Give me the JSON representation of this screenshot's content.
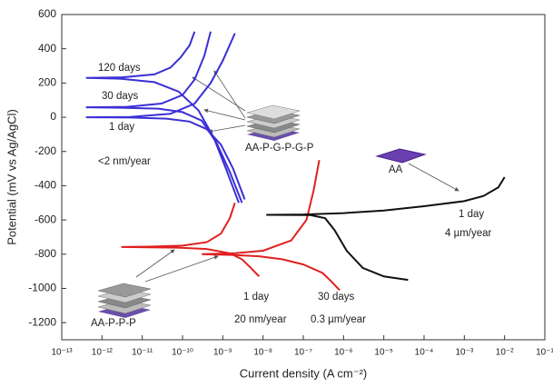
{
  "chart_data": {
    "type": "line",
    "xlabel": "Current density (A cm⁻²)",
    "ylabel": "Potential (mV vs Ag/AgCl)",
    "xscale": "log",
    "xlim": [
      1e-13,
      0.1
    ],
    "xticks": [
      {
        "value": 1e-13,
        "label": "10⁻¹³"
      },
      {
        "value": 1e-12,
        "label": "10⁻¹²"
      },
      {
        "value": 1e-11,
        "label": "10⁻¹¹"
      },
      {
        "value": 1e-10,
        "label": "10⁻¹⁰"
      },
      {
        "value": 1e-09,
        "label": "10⁻⁹"
      },
      {
        "value": 1e-08,
        "label": "10⁻⁸"
      },
      {
        "value": 1e-07,
        "label": "10⁻⁷"
      },
      {
        "value": 1e-06,
        "label": "10⁻⁶"
      },
      {
        "value": 1e-05,
        "label": "10⁻⁵"
      },
      {
        "value": 0.0001,
        "label": "10⁻⁴"
      },
      {
        "value": 0.001,
        "label": "10⁻³"
      },
      {
        "value": 0.01,
        "label": "10⁻²"
      },
      {
        "value": 0.1,
        "label": "10⁻¹"
      }
    ],
    "ylim": [
      -1300,
      600
    ],
    "yticks": [
      -1200,
      -1000,
      -800,
      -600,
      -400,
      -200,
      0,
      200,
      400,
      600
    ],
    "series": [
      {
        "color": "#3b2fd6",
        "x": [
          2.5e-09,
          1.2e-09,
          6e-10,
          2.5e-10,
          8e-11,
          2e-11,
          3e-12,
          4e-13,
          3e-12,
          2e-11,
          5e-11,
          9e-11,
          1.5e-10,
          2e-10
        ],
        "values": [
          -500,
          -300,
          -120,
          40,
          150,
          205,
          225,
          230,
          233,
          250,
          290,
          350,
          420,
          500
        ]
      },
      {
        "color": "#3b2fd6",
        "x": [
          3e-09,
          1.5e-09,
          7e-10,
          3e-10,
          1e-10,
          2.5e-11,
          4e-12,
          4e-13,
          4e-12,
          3e-11,
          1e-10,
          2e-10,
          3.5e-10,
          5e-10
        ],
        "values": [
          -500,
          -320,
          -150,
          -20,
          30,
          50,
          55,
          58,
          60,
          80,
          130,
          220,
          360,
          500
        ]
      },
      {
        "color": "#3b2fd6",
        "x": [
          3.5e-09,
          1.8e-09,
          9e-10,
          4e-10,
          1.5e-10,
          4e-11,
          5e-12,
          4e-13,
          5e-12,
          5e-11,
          2e-10,
          5e-10,
          1e-09,
          2e-09
        ],
        "values": [
          -480,
          -300,
          -160,
          -70,
          -25,
          -8,
          -2,
          0,
          2,
          20,
          80,
          200,
          330,
          490
        ]
      },
      {
        "color": "#e02020",
        "x": [
          8e-09,
          5e-09,
          3e-09,
          1.5e-09,
          4e-10,
          8e-11,
          1.5e-11,
          3e-12,
          1.5e-11,
          1e-10,
          4e-10,
          9e-10,
          1.5e-09,
          2e-09
        ],
        "values": [
          -930,
          -880,
          -830,
          -795,
          -770,
          -762,
          -760,
          -758,
          -756,
          -750,
          -730,
          -680,
          -590,
          -500
        ]
      },
      {
        "color": "#e02020",
        "x": [
          8e-07,
          5e-07,
          3e-07,
          1e-07,
          3e-08,
          8e-09,
          2e-09,
          3e-10,
          2e-09,
          1e-08,
          5e-08,
          1.2e-07,
          1.8e-07,
          2.5e-07
        ],
        "values": [
          -1010,
          -960,
          -910,
          -860,
          -830,
          -812,
          -805,
          -800,
          -795,
          -780,
          -720,
          -600,
          -430,
          -250
        ]
      },
      {
        "color": "#111111",
        "x": [
          4e-05,
          1e-05,
          3e-06,
          1.2e-06,
          6e-07,
          3.5e-07,
          1.5e-07,
          1.2e-08,
          1e-07,
          1e-06,
          1e-05,
          0.0001,
          0.001,
          0.003,
          0.007,
          0.01
        ],
        "values": [
          -950,
          -930,
          -880,
          -780,
          -660,
          -590,
          -572,
          -570,
          -568,
          -560,
          -545,
          -520,
          -490,
          -460,
          -410,
          -350
        ]
      }
    ],
    "annotations": [
      "120 days",
      "30 days",
      "1 day",
      "<2 nm/year",
      "AA-P-G-P-G-P",
      "AA",
      "1 day",
      "4 µm/year",
      "AA-P-P-P",
      "1 day",
      "20 nm/year",
      "30 days",
      "0.3 µm/year"
    ]
  }
}
